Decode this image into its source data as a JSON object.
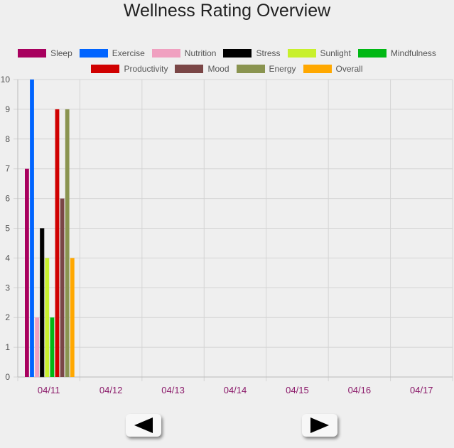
{
  "chart_data": {
    "type": "bar",
    "title": "Wellness Rating Overview",
    "categories": [
      "04/11",
      "04/12",
      "04/13",
      "04/14",
      "04/15",
      "04/16",
      "04/17"
    ],
    "ylim": [
      0,
      10
    ],
    "yticks": [
      "0",
      "1",
      "2",
      "3",
      "4",
      "5",
      "6",
      "7",
      "8",
      "9",
      "10"
    ],
    "grid": true,
    "legend_position": "top",
    "series": [
      {
        "name": "Sleep",
        "color": "#a8005e",
        "values": [
          7,
          null,
          null,
          null,
          null,
          null,
          null
        ]
      },
      {
        "name": "Exercise",
        "color": "#0064ff",
        "values": [
          10,
          null,
          null,
          null,
          null,
          null,
          null
        ]
      },
      {
        "name": "Nutrition",
        "color": "#f0a0c0",
        "values": [
          2,
          null,
          null,
          null,
          null,
          null,
          null
        ]
      },
      {
        "name": "Stress",
        "color": "#000000",
        "values": [
          5,
          null,
          null,
          null,
          null,
          null,
          null
        ]
      },
      {
        "name": "Sunlight",
        "color": "#c8f02c",
        "values": [
          4,
          null,
          null,
          null,
          null,
          null,
          null
        ]
      },
      {
        "name": "Mindfulness",
        "color": "#00b814",
        "values": [
          2,
          null,
          null,
          null,
          null,
          null,
          null
        ]
      },
      {
        "name": "Productivity",
        "color": "#d00000",
        "values": [
          9,
          null,
          null,
          null,
          null,
          null,
          null
        ]
      },
      {
        "name": "Mood",
        "color": "#7a4646",
        "values": [
          6,
          null,
          null,
          null,
          null,
          null,
          null
        ]
      },
      {
        "name": "Energy",
        "color": "#8a9450",
        "values": [
          9,
          null,
          null,
          null,
          null,
          null,
          null
        ]
      },
      {
        "name": "Overall",
        "color": "#ffa800",
        "values": [
          4,
          null,
          null,
          null,
          null,
          null,
          null
        ]
      }
    ]
  },
  "colors": {
    "tick_label_x": "#8b1a6a",
    "tick_label_y": "#555555",
    "grid": "#d4d4d4"
  },
  "nav": {
    "prev_icon": "left-arrow-icon",
    "next_icon": "right-arrow-icon"
  }
}
